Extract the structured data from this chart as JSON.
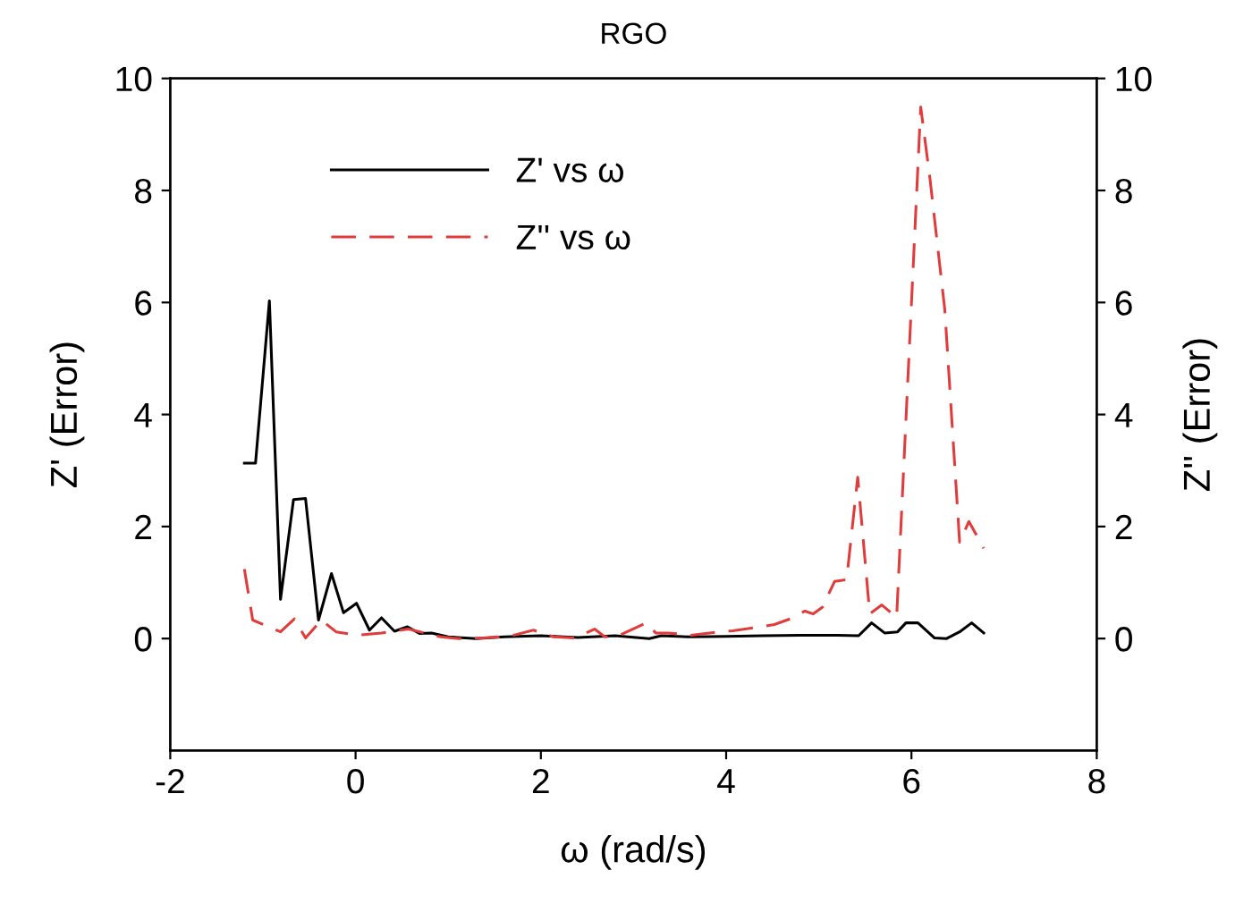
{
  "chart_data": {
    "type": "line",
    "title": "RGO",
    "xlabel": "ω (rad/s)",
    "ylabel": "Z' (Error)",
    "y2label": "Z'' (Error)",
    "xlim": [
      -2,
      8
    ],
    "xticks": [
      -2,
      0,
      2,
      4,
      6,
      8
    ],
    "ylim": [
      -2,
      10
    ],
    "yticks": [
      0,
      2,
      4,
      6,
      8,
      10
    ],
    "y2lim": [
      -2,
      10
    ],
    "y2ticks": [
      0,
      2,
      4,
      6,
      8,
      10
    ],
    "grid": false,
    "legend": "top left",
    "series": [
      {
        "name": "Z' vs ω",
        "color": "#000000",
        "line_style": "solid",
        "x": [
          -1.2,
          -1.08,
          -0.93,
          -0.81,
          -0.67,
          -0.54,
          -0.4,
          -0.26,
          -0.13,
          0.01,
          0.15,
          0.28,
          0.42,
          0.56,
          0.69,
          0.82,
          1.0,
          1.3,
          1.6,
          2.0,
          2.4,
          2.8,
          3.17,
          3.3,
          3.6,
          4.0,
          4.4,
          4.8,
          5.2,
          5.43,
          5.57,
          5.71,
          5.85,
          5.94,
          6.07,
          6.25,
          6.38,
          6.52,
          6.65,
          6.78
        ],
        "values": [
          3.13,
          3.13,
          6.03,
          0.7,
          2.48,
          2.5,
          0.33,
          1.16,
          0.46,
          0.63,
          0.15,
          0.37,
          0.13,
          0.21,
          0.09,
          0.1,
          0.03,
          0.0,
          0.03,
          0.05,
          0.02,
          0.05,
          0.0,
          0.05,
          0.03,
          0.04,
          0.05,
          0.06,
          0.06,
          0.05,
          0.28,
          0.1,
          0.12,
          0.28,
          0.28,
          0.01,
          0.0,
          0.12,
          0.28,
          0.1
        ]
      },
      {
        "name": "Z'' vs ω",
        "color": "#e03c3c",
        "line_style": "dashed",
        "axis": "y2",
        "x": [
          -1.2,
          -1.11,
          -0.95,
          -0.81,
          -0.66,
          -0.54,
          -0.37,
          -0.21,
          0.02,
          0.28,
          0.57,
          0.92,
          1.11,
          1.37,
          1.66,
          1.92,
          2.14,
          2.37,
          2.58,
          2.69,
          2.85,
          3.14,
          3.24,
          3.37,
          3.62,
          3.82,
          4.07,
          4.33,
          4.52,
          4.69,
          4.85,
          4.94,
          5.04,
          5.17,
          5.3,
          5.42,
          5.55,
          5.68,
          5.84,
          6.1,
          6.2,
          6.36,
          6.52,
          6.62,
          6.78
        ],
        "values": [
          1.24,
          0.33,
          0.22,
          0.12,
          0.35,
          0.01,
          0.33,
          0.12,
          0.06,
          0.1,
          0.17,
          0.03,
          0.0,
          0.01,
          0.04,
          0.15,
          0.03,
          0.01,
          0.17,
          0.03,
          0.06,
          0.28,
          0.1,
          0.1,
          0.06,
          0.1,
          0.14,
          0.2,
          0.25,
          0.35,
          0.49,
          0.44,
          0.56,
          1.02,
          1.05,
          2.88,
          0.44,
          0.6,
          0.38,
          9.49,
          8.21,
          5.87,
          1.72,
          2.09,
          1.61
        ]
      }
    ]
  }
}
